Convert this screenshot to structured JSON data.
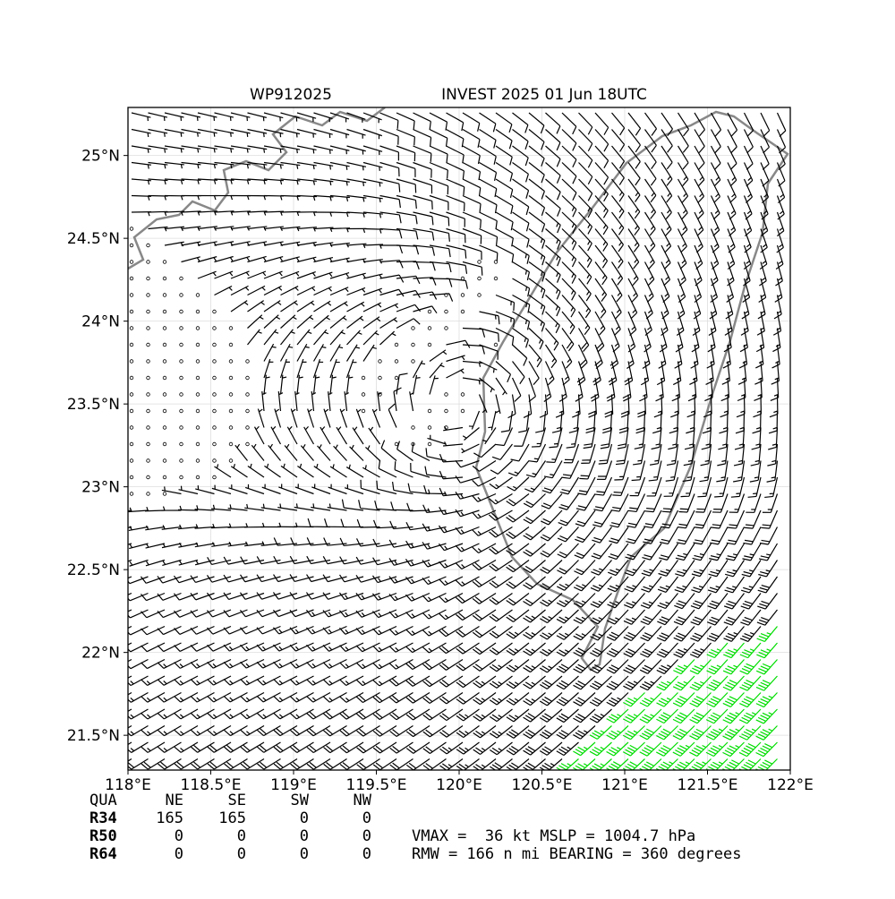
{
  "header": {
    "left": "WP912025",
    "right": "INVEST 2025 01 Jun 18UTC"
  },
  "map": {
    "xlim": [
      118,
      122
    ],
    "ylim": [
      21.29,
      25.29
    ],
    "xticks": [
      {
        "value": 118,
        "label": "118°E"
      },
      {
        "value": 118.5,
        "label": "118.5°E"
      },
      {
        "value": 119,
        "label": "119°E"
      },
      {
        "value": 119.5,
        "label": "119.5°E"
      },
      {
        "value": 120,
        "label": "120°E"
      },
      {
        "value": 120.5,
        "label": "120.5°E"
      },
      {
        "value": 121,
        "label": "121°E"
      },
      {
        "value": 121.5,
        "label": "121.5°E"
      },
      {
        "value": 122,
        "label": "122°E"
      }
    ],
    "yticks": [
      {
        "value": 21.5,
        "label": "21.5°N"
      },
      {
        "value": 22,
        "label": "22°N"
      },
      {
        "value": 22.5,
        "label": "22.5°N"
      },
      {
        "value": 23,
        "label": "23°N"
      },
      {
        "value": 23.5,
        "label": "23.5°N"
      },
      {
        "value": 24,
        "label": "24°N"
      },
      {
        "value": 24.5,
        "label": "24.5°N"
      },
      {
        "value": 25,
        "label": "25°N"
      }
    ]
  },
  "table": {
    "header": [
      "QUA",
      "NE",
      "SE",
      "SW",
      "NW"
    ],
    "rows": [
      [
        "R34",
        "165",
        "165",
        "0",
        "0"
      ],
      [
        "R50",
        "0",
        "0",
        "0",
        "0"
      ],
      [
        "R64",
        "0",
        "0",
        "0",
        "0"
      ]
    ]
  },
  "summary": [
    "VMAX =  36 kt MSLP = 1004.7 hPa",
    "RMW = 166 n mi BEARING = 360 degrees"
  ]
}
